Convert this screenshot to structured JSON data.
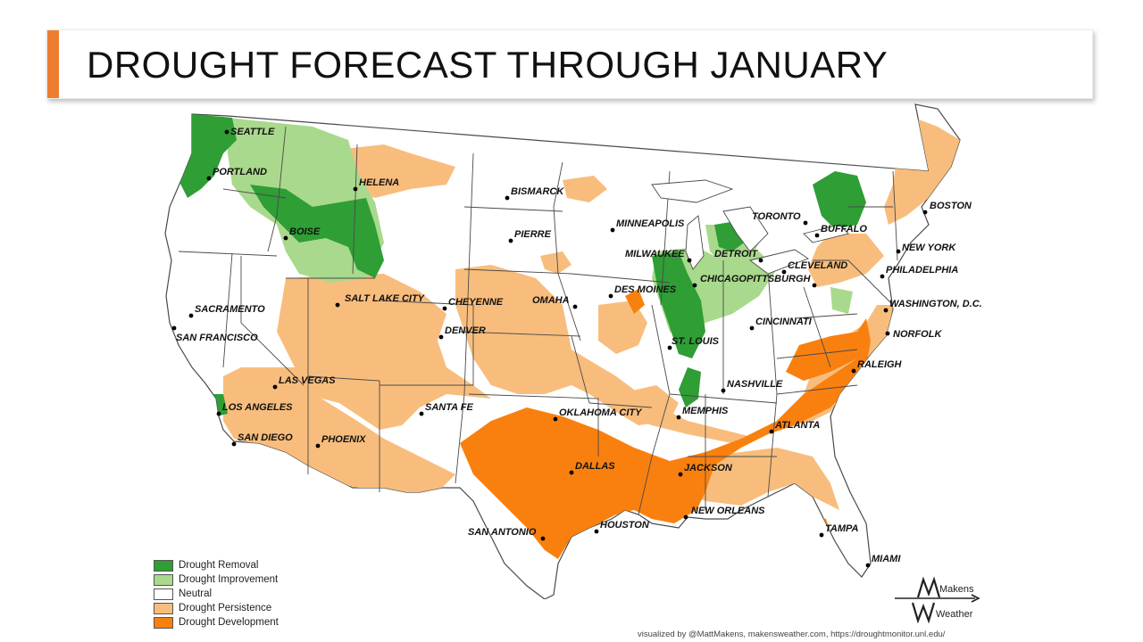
{
  "title": "DROUGHT FORECAST THROUGH JANUARY",
  "colors": {
    "accent": "#ed7d31",
    "removal": "#2e9e35",
    "improvement": "#a9d98c",
    "neutral": "#ffffff",
    "persistence": "#f8bd7c",
    "development": "#f9800f",
    "border": "#4a4a4a"
  },
  "legend": [
    {
      "label": "Drought Removal",
      "color": "#2e9e35"
    },
    {
      "label": "Drought Improvement",
      "color": "#a9d98c"
    },
    {
      "label": "Neutral",
      "color": "#ffffff"
    },
    {
      "label": "Drought Persistence",
      "color": "#f8bd7c"
    },
    {
      "label": "Drought Development",
      "color": "#f9800f"
    }
  ],
  "cities": [
    {
      "name": "SEATTLE"
    },
    {
      "name": "PORTLAND"
    },
    {
      "name": "HELENA"
    },
    {
      "name": "BISMARCK"
    },
    {
      "name": "MINNEAPOLIS"
    },
    {
      "name": "TORONTO"
    },
    {
      "name": "BOSTON"
    },
    {
      "name": "BOISE"
    },
    {
      "name": "PIERRE"
    },
    {
      "name": "BUFFALO"
    },
    {
      "name": "MILWAUKEE"
    },
    {
      "name": "DETROIT"
    },
    {
      "name": "NEW YORK"
    },
    {
      "name": "CLEVELAND"
    },
    {
      "name": "PHILADELPHIA"
    },
    {
      "name": "CHICAGO"
    },
    {
      "name": "SALT LAKE CITY"
    },
    {
      "name": "CHEYENNE"
    },
    {
      "name": "OMAHA"
    },
    {
      "name": "DES MOINES"
    },
    {
      "name": "PITTSBURGH"
    },
    {
      "name": "WASHINGTON, D.C."
    },
    {
      "name": "SACRAMENTO"
    },
    {
      "name": "CINCINNATI"
    },
    {
      "name": "SAN FRANCISCO"
    },
    {
      "name": "DENVER"
    },
    {
      "name": "NORFOLK"
    },
    {
      "name": "ST. LOUIS"
    },
    {
      "name": "RALEIGH"
    },
    {
      "name": "LAS VEGAS"
    },
    {
      "name": "NASHVILLE"
    },
    {
      "name": "LOS ANGELES"
    },
    {
      "name": "SANTA FE"
    },
    {
      "name": "OKLAHOMA CITY"
    },
    {
      "name": "MEMPHIS"
    },
    {
      "name": "ATLANTA"
    },
    {
      "name": "SAN DIEGO"
    },
    {
      "name": "PHOENIX"
    },
    {
      "name": "DALLAS"
    },
    {
      "name": "JACKSON"
    },
    {
      "name": "NEW ORLEANS"
    },
    {
      "name": "HOUSTON"
    },
    {
      "name": "SAN ANTONIO"
    },
    {
      "name": "TAMPA"
    },
    {
      "name": "MIAMI"
    }
  ],
  "logo": {
    "line1": "Makens",
    "line2": "Weather"
  },
  "credit": "visualized by @MattMakens, makensweather.com, https://droughtmonitor.unl.edu/"
}
